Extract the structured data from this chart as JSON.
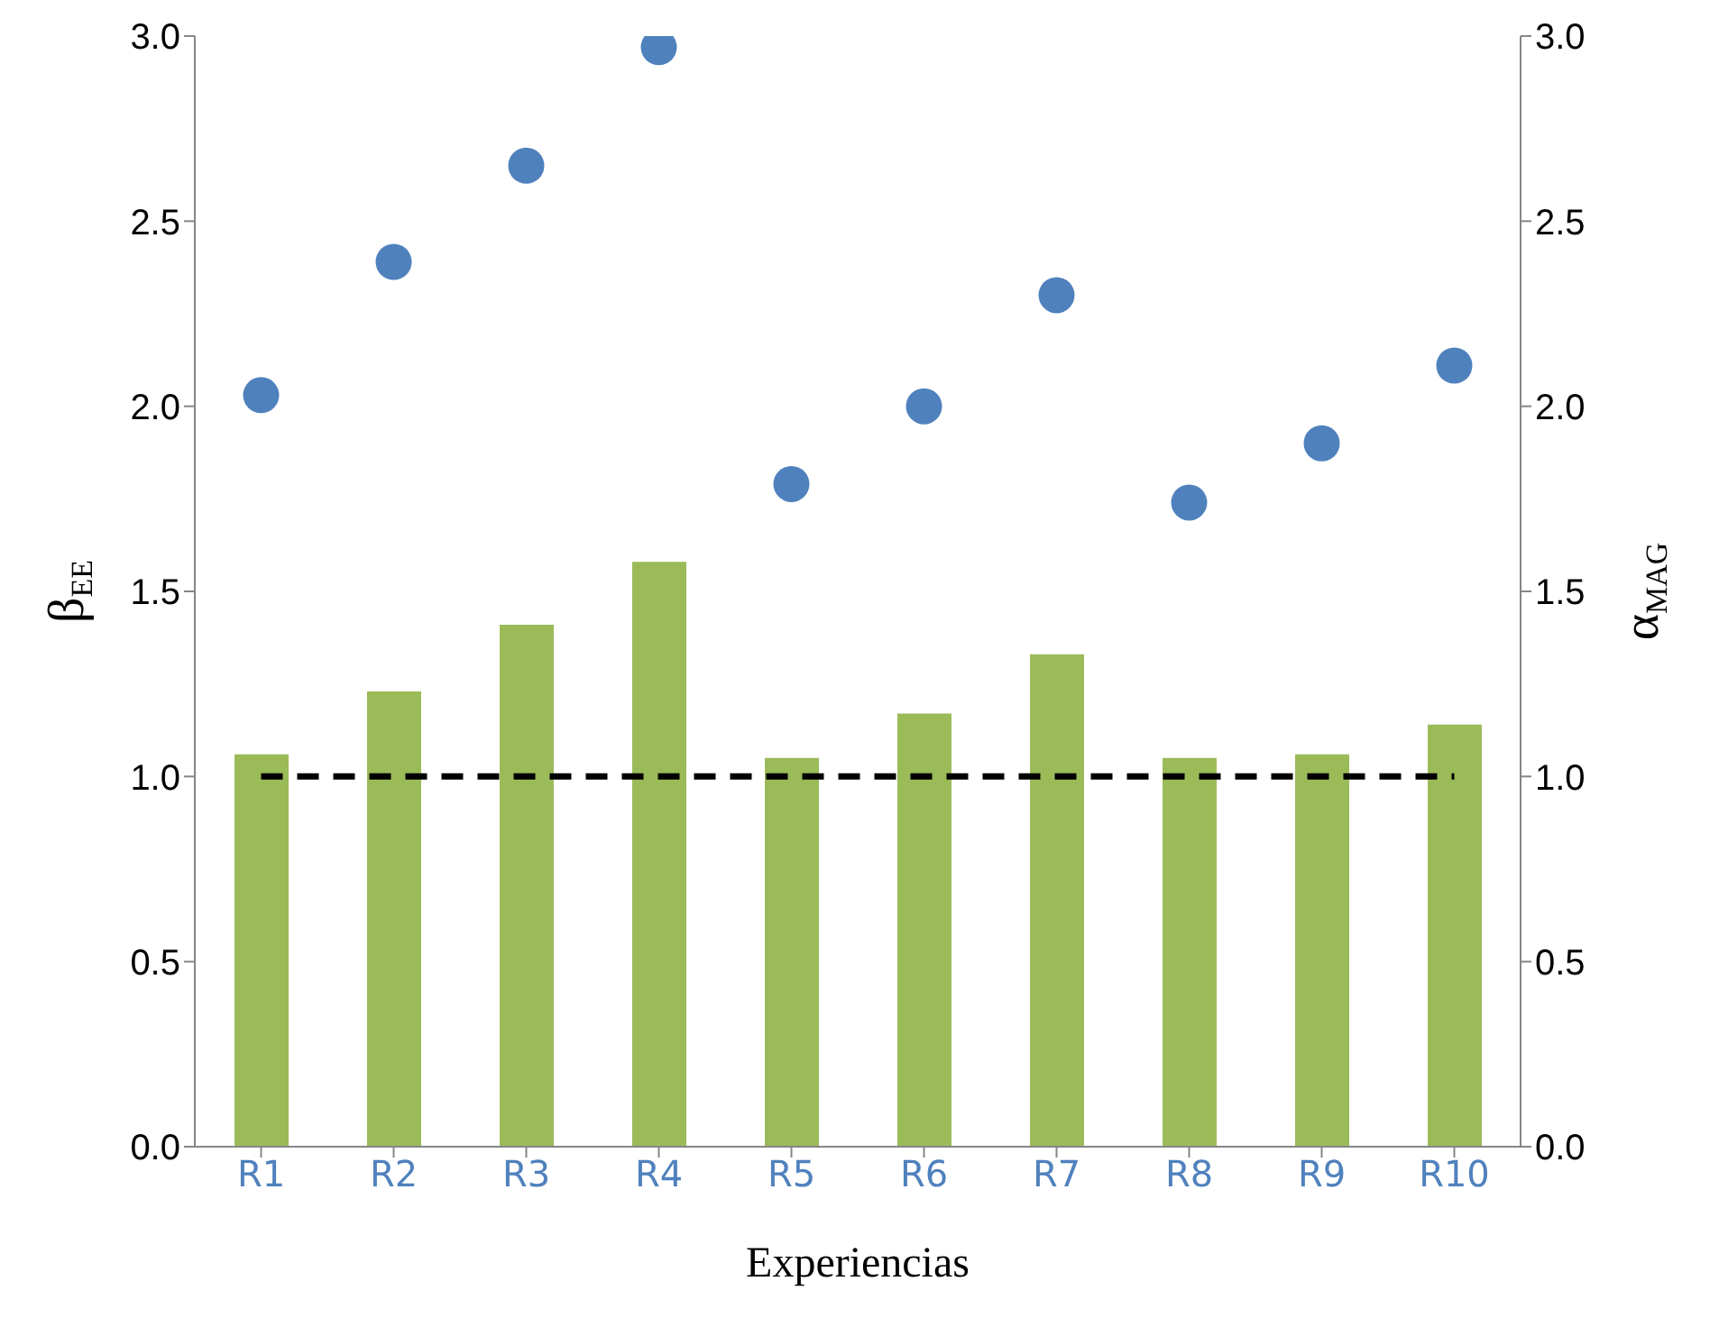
{
  "chart_data": {
    "type": "bar",
    "xlabel": "Experiencias",
    "ylabel": "β$_{EE}$",
    "y2label": "α$_{MAG}$",
    "categories": [
      "R1",
      "R2",
      "R3",
      "R4",
      "R5",
      "R6",
      "R7",
      "R8",
      "R9",
      "R10"
    ],
    "series": [
      {
        "color": "#9bbb59",
        "values": [
          1.06,
          1.23,
          1.41,
          1.58,
          1.05,
          1.17,
          1.33,
          1.05,
          1.06,
          1.14
        ]
      },
      {
        "type": "scatter",
        "color": "#4f81bd",
        "marker": "circle",
        "values": [
          2.03,
          2.39,
          2.65,
          2.97,
          1.79,
          2.0,
          2.3,
          1.74,
          1.9,
          2.11
        ]
      },
      {
        "type": "line",
        "color": "#000000",
        "line_style": "dashed",
        "marker": "none",
        "values": [
          1,
          1,
          1,
          1,
          1,
          1,
          1,
          1,
          1,
          1
        ]
      }
    ],
    "ylim": [
      0,
      3
    ],
    "yticks": [
      {
        "value": 0,
        "label": "0.0"
      },
      {
        "value": 0.5,
        "label": "0.5"
      },
      {
        "value": 1,
        "label": "1.0"
      },
      {
        "value": 1.5,
        "label": "1.5"
      },
      {
        "value": 2,
        "label": "2.0"
      },
      {
        "value": 2.5,
        "label": "2.5"
      },
      {
        "value": 3,
        "label": "3.0"
      }
    ],
    "y2lim": [
      0,
      3
    ],
    "y2ticks": [
      {
        "value": 0,
        "label": "0.0"
      },
      {
        "value": 0.5,
        "label": "0.5"
      },
      {
        "value": 1,
        "label": "1.0"
      },
      {
        "value": 1.5,
        "label": "1.5"
      },
      {
        "value": 2,
        "label": "2.0"
      },
      {
        "value": 2.5,
        "label": "2.5"
      },
      {
        "value": 3,
        "label": "3.0"
      }
    ],
    "grid": false,
    "legend": false
  }
}
